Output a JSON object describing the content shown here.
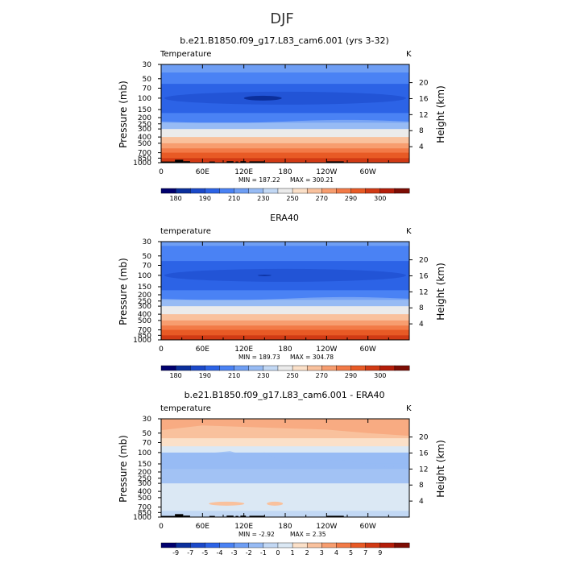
{
  "main_title": "DJF",
  "colors": {
    "absolute_palette": [
      "#00006e",
      "#0b2f9c",
      "#1b49c9",
      "#2c63e6",
      "#4a82f4",
      "#6e9ef4",
      "#97bbf4",
      "#c2d8f4",
      "#ebebeb",
      "#fbe0c8",
      "#f9c19d",
      "#f79d6f",
      "#f27a47",
      "#e85a25",
      "#d13a14",
      "#b41d09",
      "#7d0d04"
    ],
    "diff_palette": [
      "#00006e",
      "#0b2f9c",
      "#1b49c9",
      "#2c63e6",
      "#4a82f4",
      "#6e9ef4",
      "#97bbf4",
      "#c2d8f4",
      "#dbe8f4",
      "#fbe0c8",
      "#f9c19d",
      "#f79d6f",
      "#f27a47",
      "#e85a25",
      "#d13a14",
      "#b41d09",
      "#7d0d04"
    ],
    "topography": "#000000"
  },
  "chart_data": [
    {
      "type": "heatmap",
      "title": "b.e21.B1850.f09_g17.L83_cam6.001 (yrs 3-32)",
      "variable": "Temperature",
      "units": "K",
      "ylabel": "Pressure (mb)",
      "ylabel_right": "Height (km)",
      "x_ticks": [
        "0",
        "60E",
        "120E",
        "180",
        "120W",
        "60W"
      ],
      "y_ticks": [
        "30",
        "50",
        "70",
        "100",
        "150",
        "200",
        "250",
        "300",
        "400",
        "500",
        "700",
        "850",
        "1000"
      ],
      "y_right_ticks": [
        "20",
        "16",
        "12",
        "8",
        "4"
      ],
      "ylim": [
        1000,
        30
      ],
      "min_text": "MIN = 187.22",
      "max_text": "MAX = 300.21",
      "colorbar_labels": [
        "180",
        "190",
        "210",
        "230",
        "250",
        "270",
        "290",
        "300"
      ],
      "profile": [
        {
          "p": 30,
          "level": 5
        },
        {
          "p": 40,
          "level": 4
        },
        {
          "p": 60,
          "level": 3
        },
        {
          "p": 100,
          "level": 3
        },
        {
          "p": 170,
          "level": 4
        },
        {
          "p": 240,
          "level": 6
        },
        {
          "p": 300,
          "level": 8
        },
        {
          "p": 400,
          "level": 10
        },
        {
          "p": 500,
          "level": 11
        },
        {
          "p": 600,
          "level": 12
        },
        {
          "p": 700,
          "level": 13
        },
        {
          "p": 850,
          "level": 14
        },
        {
          "p": 1000,
          "level": 15
        }
      ],
      "min_region": {
        "lon_from": 120,
        "lon_to": 175,
        "p": 100,
        "level": 1
      },
      "topography": [
        {
          "lon_from": 0,
          "lon_to": 20,
          "p_top": 960
        },
        {
          "lon_from": 20,
          "lon_to": 32,
          "p_top": 900
        },
        {
          "lon_from": 32,
          "lon_to": 42,
          "p_top": 950
        },
        {
          "lon_from": 70,
          "lon_to": 78,
          "p_top": 960
        },
        {
          "lon_from": 95,
          "lon_to": 105,
          "p_top": 950
        },
        {
          "lon_from": 108,
          "lon_to": 112,
          "p_top": 960
        },
        {
          "lon_from": 115,
          "lon_to": 123,
          "p_top": 950
        },
        {
          "lon_from": 128,
          "lon_to": 150,
          "p_top": 955
        },
        {
          "lon_from": 240,
          "lon_to": 265,
          "p_top": 955
        }
      ]
    },
    {
      "type": "heatmap",
      "title": "ERA40",
      "variable": "temperature",
      "units": "K",
      "ylabel": "Pressure (mb)",
      "ylabel_right": "Height (km)",
      "x_ticks": [
        "0",
        "60E",
        "120E",
        "180",
        "120W",
        "60W"
      ],
      "y_ticks": [
        "30",
        "50",
        "70",
        "100",
        "150",
        "200",
        "250",
        "300",
        "400",
        "500",
        "700",
        "850",
        "1000"
      ],
      "y_right_ticks": [
        "20",
        "16",
        "12",
        "8",
        "4"
      ],
      "ylim": [
        1000,
        30
      ],
      "min_text": "MIN = 189.73",
      "max_text": "MAX = 304.78",
      "colorbar_labels": [
        "180",
        "190",
        "210",
        "230",
        "250",
        "270",
        "290",
        "300"
      ],
      "profile": [
        {
          "p": 30,
          "level": 5
        },
        {
          "p": 35,
          "level": 4
        },
        {
          "p": 60,
          "level": 3
        },
        {
          "p": 100,
          "level": 3
        },
        {
          "p": 170,
          "level": 4
        },
        {
          "p": 240,
          "level": 6
        },
        {
          "p": 300,
          "level": 8
        },
        {
          "p": 400,
          "level": 10
        },
        {
          "p": 500,
          "level": 11
        },
        {
          "p": 600,
          "level": 12
        },
        {
          "p": 700,
          "level": 13
        },
        {
          "p": 850,
          "level": 14
        },
        {
          "p": 1000,
          "level": 15
        }
      ],
      "min_region": {
        "lon_from": 140,
        "lon_to": 160,
        "p": 100,
        "level": 1
      },
      "topography": []
    },
    {
      "type": "heatmap",
      "title": "b.e21.B1850.f09_g17.L83_cam6.001 - ERA40",
      "variable": "temperature",
      "units": "K",
      "ylabel": "Pressure (mb)",
      "ylabel_right": "Height (km)",
      "x_ticks": [
        "0",
        "60E",
        "120E",
        "180",
        "120W",
        "60W"
      ],
      "y_ticks": [
        "30",
        "50",
        "70",
        "100",
        "150",
        "200",
        "250",
        "300",
        "400",
        "500",
        "700",
        "850",
        "1000"
      ],
      "y_right_ticks": [
        "20",
        "16",
        "12",
        "8",
        "4"
      ],
      "ylim": [
        1000,
        30
      ],
      "min_text": "MIN = -2.92",
      "max_text": "MAX = 2.35",
      "colorbar_labels": [
        "-9",
        "-7",
        "-5",
        "-4",
        "-3",
        "-2",
        "-1",
        "0",
        "1",
        "2",
        "3",
        "4",
        "5",
        "7",
        "9"
      ],
      "profile": [
        {
          "p": 30,
          "level": 10
        },
        {
          "p": 50,
          "level": 10
        },
        {
          "p": 60,
          "level": 9
        },
        {
          "p": 80,
          "level": 8
        },
        {
          "p": 100,
          "level": 6
        },
        {
          "p": 150,
          "level": 6
        },
        {
          "p": 180,
          "level": 7
        },
        {
          "p": 300,
          "level": 8
        },
        {
          "p": 600,
          "level": 8
        },
        {
          "p": 800,
          "level": 7
        },
        {
          "p": 1000,
          "level": 8
        }
      ],
      "min_region": null,
      "topography": [
        {
          "lon_from": 0,
          "lon_to": 20,
          "p_top": 960
        },
        {
          "lon_from": 20,
          "lon_to": 32,
          "p_top": 900
        },
        {
          "lon_from": 32,
          "lon_to": 42,
          "p_top": 950
        },
        {
          "lon_from": 70,
          "lon_to": 78,
          "p_top": 960
        },
        {
          "lon_from": 95,
          "lon_to": 105,
          "p_top": 950
        },
        {
          "lon_from": 108,
          "lon_to": 112,
          "p_top": 960
        },
        {
          "lon_from": 115,
          "lon_to": 123,
          "p_top": 950
        },
        {
          "lon_from": 128,
          "lon_to": 150,
          "p_top": 955
        },
        {
          "lon_from": 240,
          "lon_to": 265,
          "p_top": 955
        }
      ]
    }
  ]
}
